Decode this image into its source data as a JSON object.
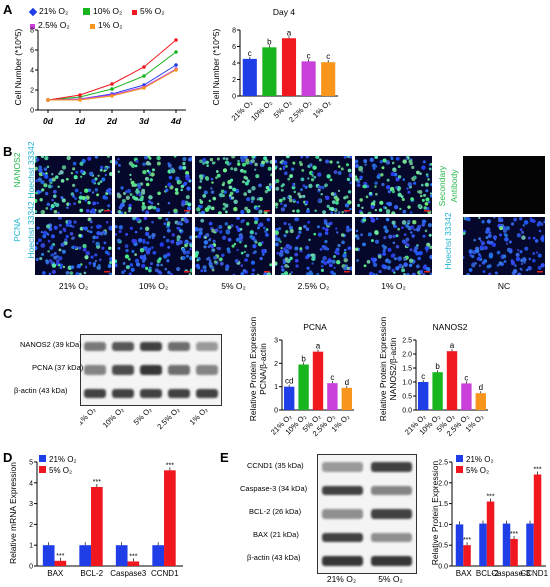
{
  "panels": {
    "A": "A",
    "B": "B",
    "C": "C",
    "D": "D",
    "E": "E"
  },
  "colors": {
    "o21": "#1f3ee8",
    "o10": "#19b51e",
    "o5": "#f0181e",
    "o2_5": "#c93fd9",
    "o1": "#f7951d",
    "blue": "#1f3ee8",
    "red": "#f0181e"
  },
  "conditions": [
    "21% O₂",
    "10% O₂",
    "5% O₂",
    "2.5% O₂",
    "1% O₂"
  ],
  "panelA": {
    "legend": [
      "21% O₂",
      "10% O₂",
      "5% O₂",
      "2.5% O₂",
      "1% O₂"
    ],
    "line_chart": {
      "type": "line",
      "ylabel": "Cell Number (*10^5)",
      "x": [
        "0d",
        "1d",
        "2d",
        "3d",
        "4d"
      ],
      "ylim": [
        0,
        8
      ],
      "yticks": [
        0,
        2,
        4,
        6,
        8
      ],
      "series": [
        {
          "name": "21% O₂",
          "values": [
            1.0,
            1.1,
            1.6,
            2.5,
            4.5
          ]
        },
        {
          "name": "10% O₂",
          "values": [
            1.0,
            1.3,
            2.1,
            3.4,
            5.8
          ]
        },
        {
          "name": "5% O₂",
          "values": [
            1.0,
            1.5,
            2.6,
            4.3,
            7.0
          ]
        },
        {
          "name": "2.5% O₂",
          "values": [
            1.0,
            1.1,
            1.5,
            2.3,
            4.1
          ]
        },
        {
          "name": "1% O₂",
          "values": [
            1.0,
            1.0,
            1.4,
            2.2,
            4.0
          ]
        }
      ]
    },
    "bar_chart": {
      "type": "bar",
      "title": "Day 4",
      "ylabel": "Cell Number (*10^5)",
      "categories": [
        "21% O₂",
        "10% O₂",
        "5% O₂",
        "2.5% O₂",
        "1% O₂"
      ],
      "values": [
        4.5,
        5.9,
        7.0,
        4.2,
        4.1
      ],
      "letters": [
        "c",
        "b",
        "a",
        "c",
        "c"
      ],
      "ylim": [
        0,
        8
      ],
      "yticks": [
        0,
        2,
        4,
        6,
        8
      ]
    }
  },
  "panelB": {
    "row1_label_a": "NANOS2",
    "row1_label_b": "Hoechst 33342",
    "row2_label_a": "PCNA",
    "row2_label_b": "Hoechst 33342",
    "nc_row1_label_a": "Secondary",
    "nc_row1_label_b": "Antibody",
    "nc_row2_label": "Hoechst 33342",
    "nc": "NC"
  },
  "panelC": {
    "blots": [
      "NANOS2 (39 kDa)",
      "PCNA (37 kDa)",
      "β-actin (43 kDa)"
    ],
    "charts": [
      {
        "type": "bar",
        "title": "PCNA",
        "ylabel_line1": "Relative Protein Expression",
        "ylabel_line2": "PCNA/β-actin",
        "categories": [
          "21% O₂",
          "10% O₂",
          "5% O₂",
          "2.5% O₂",
          "1% O₂"
        ],
        "values": [
          1.0,
          1.95,
          2.5,
          1.15,
          0.95
        ],
        "letters": [
          "cd",
          "b",
          "a",
          "c",
          "d"
        ],
        "ylim": [
          0,
          3
        ],
        "yticks": [
          0,
          1,
          2,
          3
        ]
      },
      {
        "type": "bar",
        "title": "NANOS2",
        "ylabel_line1": "Relative Protein Expression",
        "ylabel_line2": "NANOS2/β-actin",
        "categories": [
          "21% O₂",
          "10% O₂",
          "5% O₂",
          "2.5% O₂",
          "1% O₂"
        ],
        "values": [
          1.0,
          1.35,
          2.1,
          0.95,
          0.6
        ],
        "letters": [
          "c",
          "b",
          "a",
          "c",
          "d"
        ],
        "ylim": [
          0,
          2.5
        ],
        "yticks": [
          0.0,
          0.5,
          1.0,
          1.5,
          2.0,
          2.5
        ]
      }
    ]
  },
  "panelD": {
    "type": "bar",
    "ylabel": "Relative mRNA Expression",
    "legend": [
      "21% O₂",
      "5% O₂"
    ],
    "categories": [
      "BAX",
      "BCL-2",
      "Caspase3",
      "CCND1"
    ],
    "series": [
      {
        "name": "21% O₂",
        "values": [
          1.0,
          1.0,
          1.0,
          1.0
        ]
      },
      {
        "name": "5% O₂",
        "values": [
          0.25,
          3.8,
          0.22,
          4.6
        ]
      }
    ],
    "sig": [
      "***",
      "***",
      "***",
      "***"
    ],
    "ylim": [
      0,
      5
    ],
    "yticks": [
      0,
      1,
      2,
      3,
      4,
      5
    ]
  },
  "panelE": {
    "blots": [
      "CCND1 (35 kDa)",
      "Caspase-3 (34 kDa)",
      "BCL-2 (26 kDa)",
      "BAX (21 kDa)",
      "β-actin (43 kDa)"
    ],
    "lanes": [
      "21% O₂",
      "5% O₂"
    ],
    "chart": {
      "type": "bar",
      "ylabel": "Relative Protein Expression",
      "legend": [
        "21% O₂",
        "5% O₂"
      ],
      "categories": [
        "BAX",
        "BCL-2",
        "Caspase-3",
        "CCND1"
      ],
      "series": [
        {
          "name": "21% O₂",
          "values": [
            1.0,
            1.02,
            1.02,
            1.02
          ]
        },
        {
          "name": "5% O₂",
          "values": [
            0.5,
            1.55,
            0.65,
            2.2
          ]
        }
      ],
      "sig": [
        "***",
        "***",
        "***",
        "***"
      ],
      "ylim": [
        0,
        2.5
      ],
      "yticks": [
        0.0,
        0.5,
        1.0,
        1.5,
        2.0,
        2.5
      ]
    }
  }
}
